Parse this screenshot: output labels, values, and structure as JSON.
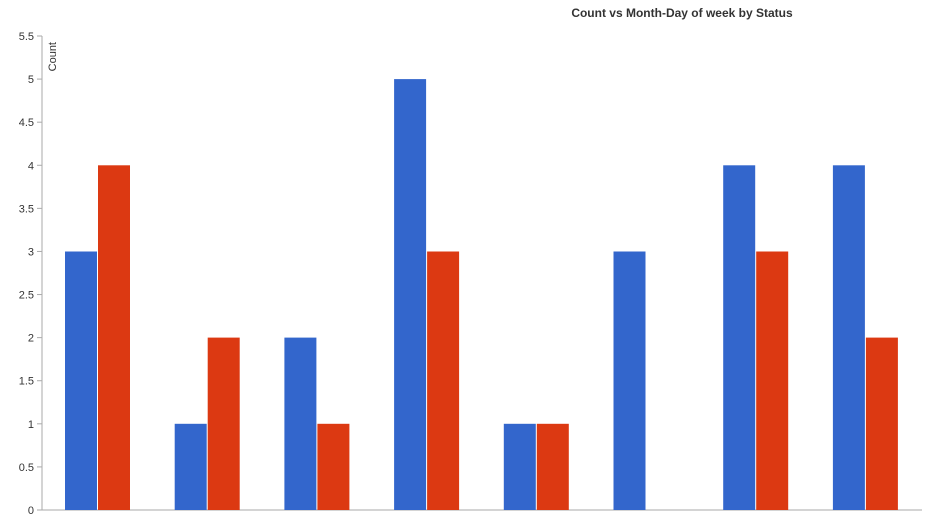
{
  "chart_data": {
    "type": "bar",
    "title": "Count vs Month-Day of week by Status",
    "ylabel": "Count",
    "xlabel": "",
    "ylim": [
      0,
      5.5
    ],
    "yticks": [
      "0",
      "0.5",
      "1",
      "1.5",
      "2",
      "2.5",
      "3",
      "3.5",
      "4",
      "4.5",
      "5",
      "5.5"
    ],
    "categories": [
      "",
      "",
      "",
      "",
      "",
      "",
      "",
      ""
    ],
    "grid": false,
    "legend": "none",
    "series": [
      {
        "color": "#3366cc",
        "values": [
          3,
          1,
          2,
          5,
          1,
          3,
          4,
          4
        ]
      },
      {
        "color": "#dc3912",
        "values": [
          4,
          2,
          1,
          3,
          1,
          0,
          3,
          2
        ]
      }
    ]
  }
}
